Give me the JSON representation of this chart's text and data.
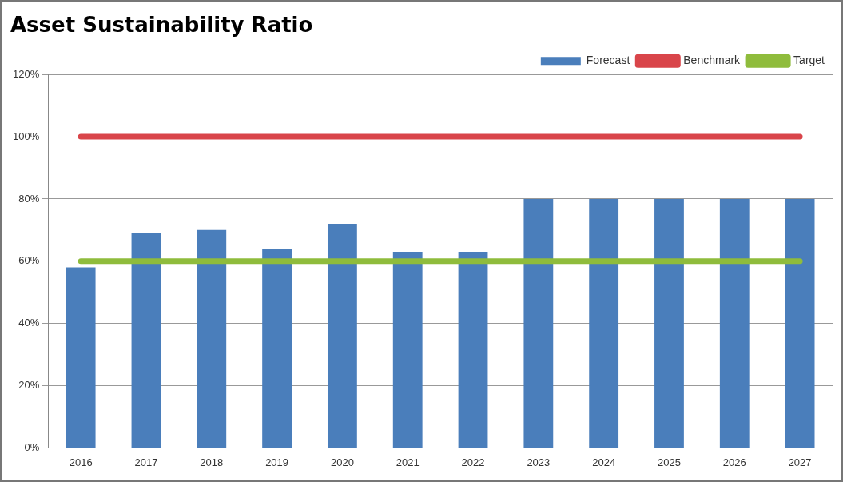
{
  "chart_data": {
    "type": "bar",
    "title": "Asset Sustainability Ratio",
    "categories": [
      "2016",
      "2017",
      "2018",
      "2019",
      "2020",
      "2021",
      "2022",
      "2023",
      "2024",
      "2025",
      "2026",
      "2027"
    ],
    "series": [
      {
        "name": "Forecast",
        "color": "#4a7ebb",
        "values": [
          58,
          69,
          70,
          64,
          72,
          63,
          63,
          80,
          80,
          80,
          80,
          80
        ]
      },
      {
        "name": "Benchmark",
        "type": "line",
        "color": "#d9454a",
        "values": [
          100,
          100,
          100,
          100,
          100,
          100,
          100,
          100,
          100,
          100,
          100,
          100
        ]
      },
      {
        "name": "Target",
        "type": "line",
        "color": "#8fbc3c",
        "values": [
          60,
          60,
          60,
          60,
          60,
          60,
          60,
          60,
          60,
          60,
          60,
          60
        ]
      }
    ],
    "ylim": [
      0,
      120
    ],
    "yticks": [
      {
        "value": 0,
        "label": "0%"
      },
      {
        "value": 20,
        "label": "20%"
      },
      {
        "value": 40,
        "label": "40%"
      },
      {
        "value": 60,
        "label": "60%"
      },
      {
        "value": 80,
        "label": "80%"
      },
      {
        "value": 100,
        "label": "100%"
      },
      {
        "value": 120,
        "label": "120%"
      }
    ],
    "grid": "y",
    "legend": "top right",
    "marker": "none"
  }
}
